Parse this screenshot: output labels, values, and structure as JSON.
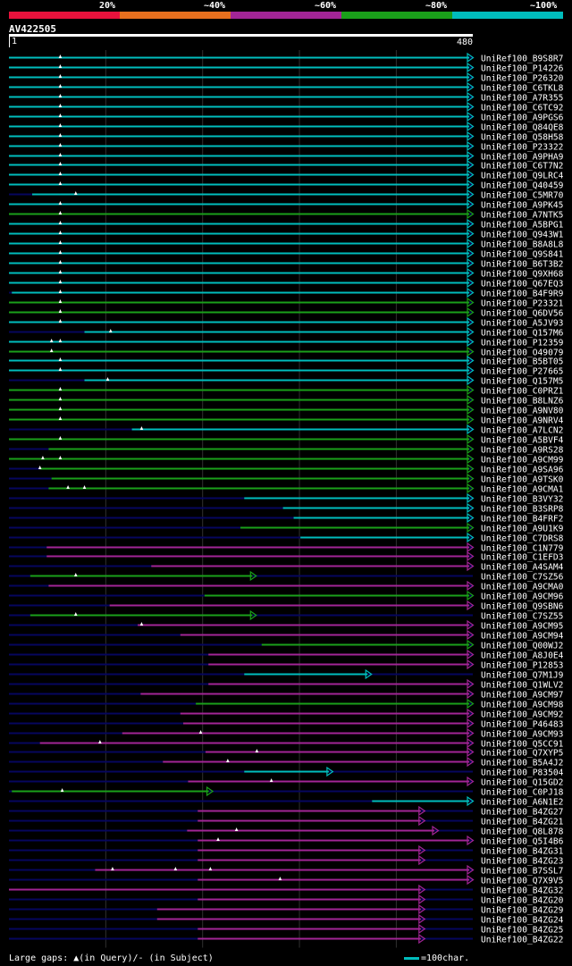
{
  "legend": {
    "labels": [
      "20%",
      "~40%",
      "~60%",
      "~80%",
      "~100%"
    ],
    "colors": [
      "#e8123c",
      "#e8701e",
      "#a22596",
      "#1aa01a",
      "#00bdbd"
    ]
  },
  "query": {
    "name": "AV422505",
    "start_label": "1",
    "end_label": "480",
    "length": 480
  },
  "colors": {
    "cyan": "#00bdbd",
    "green": "#1aa01a",
    "magenta": "#a22596",
    "track": "#06065e",
    "grid": "#303030"
  },
  "hits": [
    {
      "name": "UniRef100_B9S8R7",
      "start": 1,
      "end": 480,
      "color": "cyan",
      "marks": [
        54
      ]
    },
    {
      "name": "UniRef100_P14226",
      "start": 1,
      "end": 480,
      "color": "cyan",
      "marks": [
        54
      ]
    },
    {
      "name": "UniRef100_P26320",
      "start": 1,
      "end": 480,
      "color": "cyan",
      "marks": [
        54
      ]
    },
    {
      "name": "UniRef100_C6TKL8",
      "start": 1,
      "end": 480,
      "color": "cyan",
      "marks": [
        54
      ]
    },
    {
      "name": "UniRef100_A7R355",
      "start": 1,
      "end": 480,
      "color": "cyan",
      "marks": [
        54
      ]
    },
    {
      "name": "UniRef100_C6TC92",
      "start": 1,
      "end": 480,
      "color": "cyan",
      "marks": [
        54
      ]
    },
    {
      "name": "UniRef100_A9PGS6",
      "start": 1,
      "end": 480,
      "color": "cyan",
      "marks": [
        54
      ]
    },
    {
      "name": "UniRef100_Q84QE8",
      "start": 1,
      "end": 480,
      "color": "cyan",
      "marks": [
        54
      ]
    },
    {
      "name": "UniRef100_Q58H58",
      "start": 1,
      "end": 480,
      "color": "cyan",
      "marks": [
        54
      ]
    },
    {
      "name": "UniRef100_P23322",
      "start": 1,
      "end": 480,
      "color": "cyan",
      "marks": [
        54
      ]
    },
    {
      "name": "UniRef100_A9PHA9",
      "start": 1,
      "end": 480,
      "color": "cyan",
      "marks": [
        54
      ]
    },
    {
      "name": "UniRef100_C6T7N2",
      "start": 1,
      "end": 480,
      "color": "cyan",
      "marks": [
        54
      ]
    },
    {
      "name": "UniRef100_Q9LRC4",
      "start": 1,
      "end": 480,
      "color": "cyan",
      "marks": [
        54
      ]
    },
    {
      "name": "UniRef100_Q40459",
      "start": 1,
      "end": 480,
      "color": "cyan",
      "marks": [
        54
      ]
    },
    {
      "name": "UniRef100_C5MR70",
      "start": 25,
      "end": 480,
      "color": "cyan",
      "marks": [
        70
      ]
    },
    {
      "name": "UniRef100_A9PK45",
      "start": 1,
      "end": 480,
      "color": "cyan",
      "marks": [
        54
      ]
    },
    {
      "name": "UniRef100_A7NTK5",
      "start": 1,
      "end": 480,
      "color": "green",
      "marks": [
        54
      ]
    },
    {
      "name": "UniRef100_A5BPG1",
      "start": 1,
      "end": 480,
      "color": "cyan",
      "marks": [
        54
      ]
    },
    {
      "name": "UniRef100_Q943W1",
      "start": 1,
      "end": 480,
      "color": "cyan",
      "marks": [
        54
      ]
    },
    {
      "name": "UniRef100_B8A8L8",
      "start": 1,
      "end": 480,
      "color": "cyan",
      "marks": [
        54
      ]
    },
    {
      "name": "UniRef100_Q9S841",
      "start": 1,
      "end": 480,
      "color": "cyan",
      "marks": [
        54
      ]
    },
    {
      "name": "UniRef100_B6T3B2",
      "start": 1,
      "end": 480,
      "color": "cyan",
      "marks": [
        54
      ]
    },
    {
      "name": "UniRef100_Q9XH68",
      "start": 1,
      "end": 480,
      "color": "cyan",
      "marks": [
        54
      ]
    },
    {
      "name": "UniRef100_Q67EQ3",
      "start": 1,
      "end": 480,
      "color": "cyan",
      "marks": [
        54
      ]
    },
    {
      "name": "UniRef100_B4F9R9",
      "start": 4,
      "end": 480,
      "color": "cyan",
      "marks": [
        54
      ]
    },
    {
      "name": "UniRef100_P23321",
      "start": 1,
      "end": 480,
      "color": "green",
      "marks": [
        54
      ]
    },
    {
      "name": "UniRef100_Q6DV56",
      "start": 1,
      "end": 480,
      "color": "green",
      "marks": [
        54
      ]
    },
    {
      "name": "UniRef100_A5JV93",
      "start": 1,
      "end": 480,
      "color": "cyan",
      "marks": [
        54
      ]
    },
    {
      "name": "UniRef100_Q157M6",
      "start": 79,
      "end": 480,
      "color": "cyan",
      "marks": [
        106
      ]
    },
    {
      "name": "UniRef100_P12359",
      "start": 1,
      "end": 480,
      "color": "cyan",
      "marks": [
        45,
        54
      ]
    },
    {
      "name": "UniRef100_O49079",
      "start": 1,
      "end": 480,
      "color": "green",
      "marks": [
        45
      ]
    },
    {
      "name": "UniRef100_B5BT05",
      "start": 1,
      "end": 480,
      "color": "cyan",
      "marks": [
        54
      ]
    },
    {
      "name": "UniRef100_P27665",
      "start": 1,
      "end": 480,
      "color": "cyan",
      "marks": [
        54
      ]
    },
    {
      "name": "UniRef100_Q157M5",
      "start": 79,
      "end": 480,
      "color": "cyan",
      "marks": [
        103
      ]
    },
    {
      "name": "UniRef100_C0PRZ1",
      "start": 1,
      "end": 480,
      "color": "green",
      "marks": [
        54
      ]
    },
    {
      "name": "UniRef100_B8LNZ6",
      "start": 1,
      "end": 480,
      "color": "green",
      "marks": [
        54
      ]
    },
    {
      "name": "UniRef100_A9NV80",
      "start": 1,
      "end": 480,
      "color": "green",
      "marks": [
        54
      ]
    },
    {
      "name": "UniRef100_A9NRV4",
      "start": 1,
      "end": 480,
      "color": "green",
      "marks": [
        54
      ]
    },
    {
      "name": "UniRef100_A7LCN2",
      "start": 128,
      "end": 480,
      "color": "cyan",
      "marks": [
        138
      ]
    },
    {
      "name": "UniRef100_A5BVF4",
      "start": 1,
      "end": 480,
      "color": "green",
      "marks": [
        54
      ]
    },
    {
      "name": "UniRef100_A9RS28",
      "start": 42,
      "end": 480,
      "color": "green",
      "marks": []
    },
    {
      "name": "UniRef100_A9CM99",
      "start": 1,
      "end": 480,
      "color": "green",
      "marks": [
        36,
        54
      ]
    },
    {
      "name": "UniRef100_A9SA96",
      "start": 33,
      "end": 480,
      "color": "green",
      "marks": [
        33
      ]
    },
    {
      "name": "UniRef100_A9TSK0",
      "start": 45,
      "end": 480,
      "color": "green",
      "marks": []
    },
    {
      "name": "UniRef100_A9CMA1",
      "start": 42,
      "end": 480,
      "color": "green",
      "marks": [
        62,
        79
      ]
    },
    {
      "name": "UniRef100_B3VY32",
      "start": 244,
      "end": 480,
      "color": "cyan",
      "marks": []
    },
    {
      "name": "UniRef100_B3SRP8",
      "start": 284,
      "end": 480,
      "color": "cyan",
      "marks": []
    },
    {
      "name": "UniRef100_B4FRF2",
      "start": 295,
      "end": 480,
      "color": "cyan",
      "marks": []
    },
    {
      "name": "UniRef100_A9U1K9",
      "start": 240,
      "end": 480,
      "color": "green",
      "marks": []
    },
    {
      "name": "UniRef100_C7DRS8",
      "start": 302,
      "end": 480,
      "color": "cyan",
      "marks": []
    },
    {
      "name": "UniRef100_C1N779",
      "start": 40,
      "end": 480,
      "color": "magenta",
      "marks": []
    },
    {
      "name": "UniRef100_C1EFD3",
      "start": 40,
      "end": 480,
      "color": "magenta",
      "marks": []
    },
    {
      "name": "UniRef100_A4SAM4",
      "start": 148,
      "end": 480,
      "color": "magenta",
      "marks": []
    },
    {
      "name": "UniRef100_C7SZ56",
      "start": 23,
      "end": 256,
      "color": "green",
      "marks": [
        70
      ]
    },
    {
      "name": "UniRef100_A9CMA0",
      "start": 42,
      "end": 480,
      "color": "magenta",
      "marks": []
    },
    {
      "name": "UniRef100_A9CM96",
      "start": 203,
      "end": 480,
      "color": "green",
      "marks": []
    },
    {
      "name": "UniRef100_Q9SBN6",
      "start": 105,
      "end": 480,
      "color": "magenta",
      "marks": []
    },
    {
      "name": "UniRef100_C7SZ55",
      "start": 23,
      "end": 256,
      "color": "green",
      "marks": [
        70
      ]
    },
    {
      "name": "UniRef100_A9CM95",
      "start": 134,
      "end": 480,
      "color": "magenta",
      "marks": [
        138
      ]
    },
    {
      "name": "UniRef100_A9CM94",
      "start": 178,
      "end": 480,
      "color": "magenta",
      "marks": []
    },
    {
      "name": "UniRef100_Q00WJ2",
      "start": 262,
      "end": 480,
      "color": "green",
      "marks": []
    },
    {
      "name": "UniRef100_A8J0E4",
      "start": 207,
      "end": 480,
      "color": "magenta",
      "marks": []
    },
    {
      "name": "UniRef100_P12853",
      "start": 207,
      "end": 480,
      "color": "magenta",
      "marks": []
    },
    {
      "name": "UniRef100_Q7M1J9",
      "start": 244,
      "end": 375,
      "color": "cyan",
      "marks": []
    },
    {
      "name": "UniRef100_Q1WLV2",
      "start": 207,
      "end": 480,
      "color": "magenta",
      "marks": []
    },
    {
      "name": "UniRef100_A9CM97",
      "start": 137,
      "end": 480,
      "color": "magenta",
      "marks": []
    },
    {
      "name": "UniRef100_A9CM98",
      "start": 194,
      "end": 480,
      "color": "green",
      "marks": []
    },
    {
      "name": "UniRef100_A9CM92",
      "start": 178,
      "end": 480,
      "color": "magenta",
      "marks": []
    },
    {
      "name": "UniRef100_P46483",
      "start": 181,
      "end": 480,
      "color": "magenta",
      "marks": []
    },
    {
      "name": "UniRef100_A9CM93",
      "start": 118,
      "end": 480,
      "color": "magenta",
      "marks": [
        199
      ]
    },
    {
      "name": "UniRef100_Q5CC91",
      "start": 33,
      "end": 480,
      "color": "magenta",
      "marks": [
        95
      ]
    },
    {
      "name": "UniRef100_Q7XYP5",
      "start": 204,
      "end": 480,
      "color": "magenta",
      "marks": [
        257
      ]
    },
    {
      "name": "UniRef100_B5A4J2",
      "start": 160,
      "end": 480,
      "color": "magenta",
      "marks": [
        227
      ]
    },
    {
      "name": "UniRef100_P83504",
      "start": 244,
      "end": 335,
      "color": "cyan",
      "marks": []
    },
    {
      "name": "UniRef100_Q15GD2",
      "start": 186,
      "end": 480,
      "color": "magenta",
      "marks": [
        272
      ]
    },
    {
      "name": "UniRef100_C0PJ18",
      "start": 4,
      "end": 211,
      "color": "green",
      "marks": [
        56
      ]
    },
    {
      "name": "UniRef100_A6N1E2",
      "start": 376,
      "end": 480,
      "color": "cyan",
      "marks": []
    },
    {
      "name": "UniRef100_B4ZG27",
      "start": 196,
      "end": 430,
      "color": "magenta",
      "marks": []
    },
    {
      "name": "UniRef100_B4ZG21",
      "start": 196,
      "end": 430,
      "color": "magenta",
      "marks": []
    },
    {
      "name": "UniRef100_Q8L878",
      "start": 185,
      "end": 444,
      "color": "magenta",
      "marks": [
        236
      ]
    },
    {
      "name": "UniRef100_Q5I4B6",
      "start": 196,
      "end": 480,
      "color": "magenta",
      "marks": [
        217
      ]
    },
    {
      "name": "UniRef100_B4ZG31",
      "start": 196,
      "end": 430,
      "color": "magenta",
      "marks": []
    },
    {
      "name": "UniRef100_B4ZG23",
      "start": 196,
      "end": 430,
      "color": "magenta",
      "marks": []
    },
    {
      "name": "UniRef100_B7SSL7",
      "start": 90,
      "end": 480,
      "color": "magenta",
      "marks": [
        108,
        173,
        209
      ]
    },
    {
      "name": "UniRef100_Q7X9V5",
      "start": 196,
      "end": 480,
      "color": "magenta",
      "marks": [
        281
      ]
    },
    {
      "name": "UniRef100_B4ZG32",
      "start": 1,
      "end": 430,
      "color": "magenta",
      "marks": []
    },
    {
      "name": "UniRef100_B4ZG20",
      "start": 196,
      "end": 430,
      "color": "magenta",
      "marks": []
    },
    {
      "name": "UniRef100_B4ZG29",
      "start": 154,
      "end": 430,
      "color": "magenta",
      "marks": []
    },
    {
      "name": "UniRef100_B4ZG24",
      "start": 154,
      "end": 430,
      "color": "magenta",
      "marks": []
    },
    {
      "name": "UniRef100_B4ZG25",
      "start": 196,
      "end": 430,
      "color": "magenta",
      "marks": []
    },
    {
      "name": "UniRef100_B4ZG22",
      "start": 196,
      "end": 430,
      "color": "magenta",
      "marks": []
    }
  ],
  "footer": {
    "gaps_text": "Large gaps: ▲(in Query)/- (in Subject)",
    "scale_text": "=100char."
  }
}
